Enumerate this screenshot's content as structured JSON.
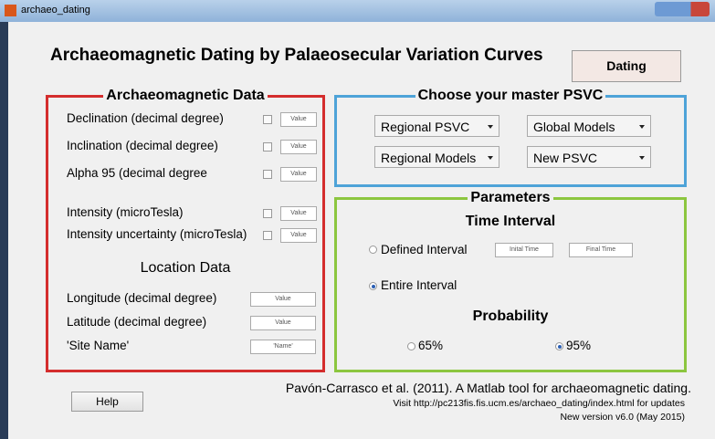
{
  "window": {
    "title": "archaeo_dating"
  },
  "header": {
    "title": "Archaeomagnetic Dating by Palaeosecular Variation Curves",
    "button": "Dating"
  },
  "data_panel": {
    "title": "Archaeomagnetic Data",
    "fields": [
      {
        "label": "Declination (decimal degree)",
        "input": "Value"
      },
      {
        "label": "Inclination (decimal degree)",
        "input": "Value"
      },
      {
        "label": "Alpha 95 (decimal degree",
        "input": "Value"
      },
      {
        "label": "Intensity (microTesla)",
        "input": "Value"
      },
      {
        "label": "Intensity uncertainty (microTesla)",
        "input": "Value"
      }
    ],
    "location_title": "Location Data",
    "location_fields": [
      {
        "label": "Longitude (decimal degree)",
        "input": "Value"
      },
      {
        "label": "Latitude (decimal degree)",
        "input": "Value"
      },
      {
        "label": "'Site Name'",
        "input": "'Name'"
      }
    ]
  },
  "psvc_panel": {
    "title": "Choose your master PSVC",
    "menus": [
      "Regional PSVC",
      "Global Models",
      "Regional Models",
      "New PSVC"
    ]
  },
  "parameters": {
    "title": "Parameters",
    "time_title": "Time Interval",
    "options": [
      "Defined Interval",
      "Entire Interval"
    ],
    "initial": "Inital Time",
    "final": "Final Time",
    "probability_title": "Probability",
    "probabilities": [
      "65%",
      "95%"
    ]
  },
  "footer": {
    "citation": "Pavón-Carrasco et al. (2011). A Matlab tool for archaeomagnetic dating.",
    "visit": "Visit http://pc213fis.fis.ucm.es/archaeo_dating/index.html for updates",
    "version": "New version v6.0 (May 2015)"
  },
  "help": "Help"
}
